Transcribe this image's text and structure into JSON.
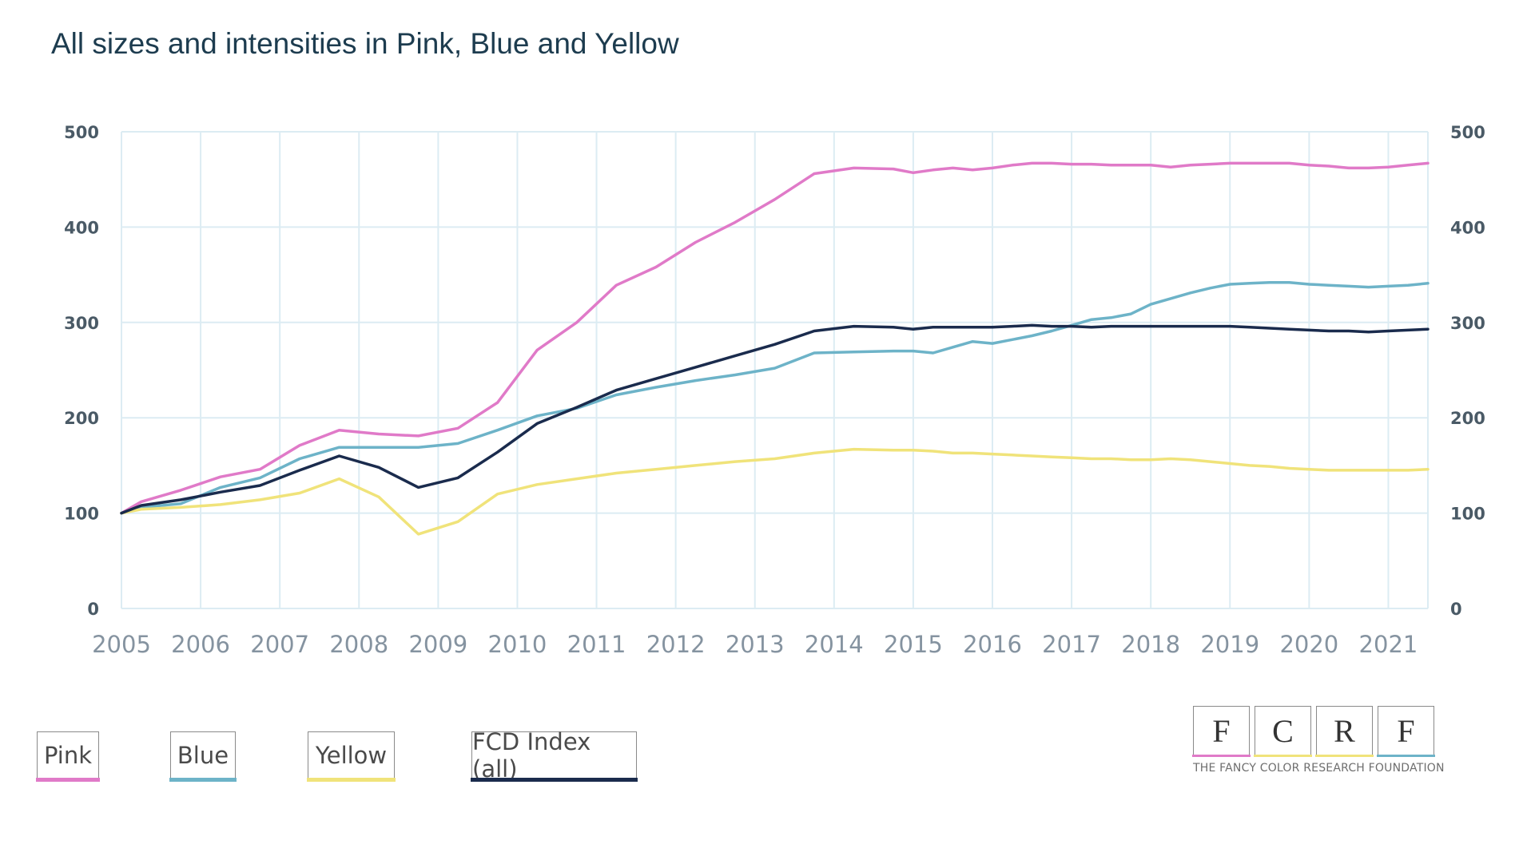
{
  "title": "All sizes and intensities in Pink, Blue and Yellow",
  "chart_data": {
    "type": "line",
    "title": "All sizes and intensities in Pink, Blue and Yellow",
    "xlabel": "",
    "ylabel": "",
    "xlim": [
      2005,
      2021.5
    ],
    "ylim": [
      0,
      500
    ],
    "x_ticks": [
      "2005",
      "2006",
      "2007",
      "2008",
      "2009",
      "2010",
      "2011",
      "2012",
      "2013",
      "2014",
      "2015",
      "2016",
      "2017",
      "2018",
      "2019",
      "2020",
      "2021"
    ],
    "y_ticks": [
      "0",
      "100",
      "200",
      "300",
      "400",
      "500"
    ],
    "grid": true,
    "legend_position": "bottom-left",
    "x": [
      2005.0,
      2005.25,
      2005.75,
      2006.25,
      2006.75,
      2007.25,
      2007.75,
      2008.25,
      2008.75,
      2009.25,
      2009.75,
      2010.25,
      2010.75,
      2011.25,
      2011.75,
      2012.25,
      2012.75,
      2013.25,
      2013.75,
      2014.25,
      2014.75,
      2015.0,
      2015.25,
      2015.5,
      2015.75,
      2016.0,
      2016.25,
      2016.5,
      2016.75,
      2017.0,
      2017.25,
      2017.5,
      2017.75,
      2018.0,
      2018.25,
      2018.5,
      2018.75,
      2019.0,
      2019.25,
      2019.5,
      2019.75,
      2020.0,
      2020.25,
      2020.5,
      2020.75,
      2021.0,
      2021.25,
      2021.5
    ],
    "series": [
      {
        "name": "Pink",
        "color": "#e07ac8",
        "values": [
          100,
          112,
          124,
          138,
          146,
          171,
          187,
          183,
          181,
          189,
          216,
          271,
          300,
          339,
          358,
          384,
          405,
          429,
          456,
          462,
          461,
          457,
          460,
          462,
          460,
          462,
          465,
          467,
          467,
          466,
          466,
          465,
          465,
          465,
          463,
          465,
          466,
          467,
          467,
          467,
          467,
          465,
          464,
          462,
          462,
          463,
          465,
          467
        ]
      },
      {
        "name": "Blue",
        "color": "#6db3c8",
        "values": [
          100,
          106,
          110,
          127,
          137,
          157,
          169,
          169,
          169,
          173,
          187,
          202,
          210,
          224,
          232,
          239,
          245,
          252,
          268,
          269,
          270,
          270,
          268,
          274,
          280,
          278,
          282,
          286,
          291,
          297,
          303,
          305,
          309,
          319,
          325,
          331,
          336,
          340,
          341,
          342,
          342,
          340,
          339,
          338,
          337,
          338,
          339,
          341
        ]
      },
      {
        "name": "Yellow",
        "color": "#f0e37a",
        "values": [
          100,
          104,
          106,
          109,
          114,
          121,
          136,
          117,
          78,
          91,
          120,
          130,
          136,
          142,
          146,
          150,
          154,
          157,
          163,
          167,
          166,
          166,
          165,
          163,
          163,
          162,
          161,
          160,
          159,
          158,
          157,
          157,
          156,
          156,
          157,
          156,
          154,
          152,
          150,
          149,
          147,
          146,
          145,
          145,
          145,
          145,
          145,
          146
        ]
      },
      {
        "name": "FCD Index (all)",
        "color": "#1a2b4d",
        "values": [
          100,
          108,
          114,
          122,
          129,
          145,
          160,
          148,
          127,
          137,
          164,
          194,
          211,
          229,
          241,
          253,
          265,
          277,
          291,
          296,
          295,
          293,
          295,
          295,
          295,
          295,
          296,
          297,
          296,
          296,
          295,
          296,
          296,
          296,
          296,
          296,
          296,
          296,
          295,
          294,
          293,
          292,
          291,
          291,
          290,
          291,
          292,
          293
        ]
      }
    ]
  },
  "logo": {
    "letters": [
      "F",
      "C",
      "R",
      "F"
    ],
    "line_colors": [
      "#e07ac8",
      "#f0e37a",
      "#f0e37a",
      "#6db3c8"
    ],
    "tagline": "THE FANCY COLOR RESEARCH FOUNDATION"
  }
}
